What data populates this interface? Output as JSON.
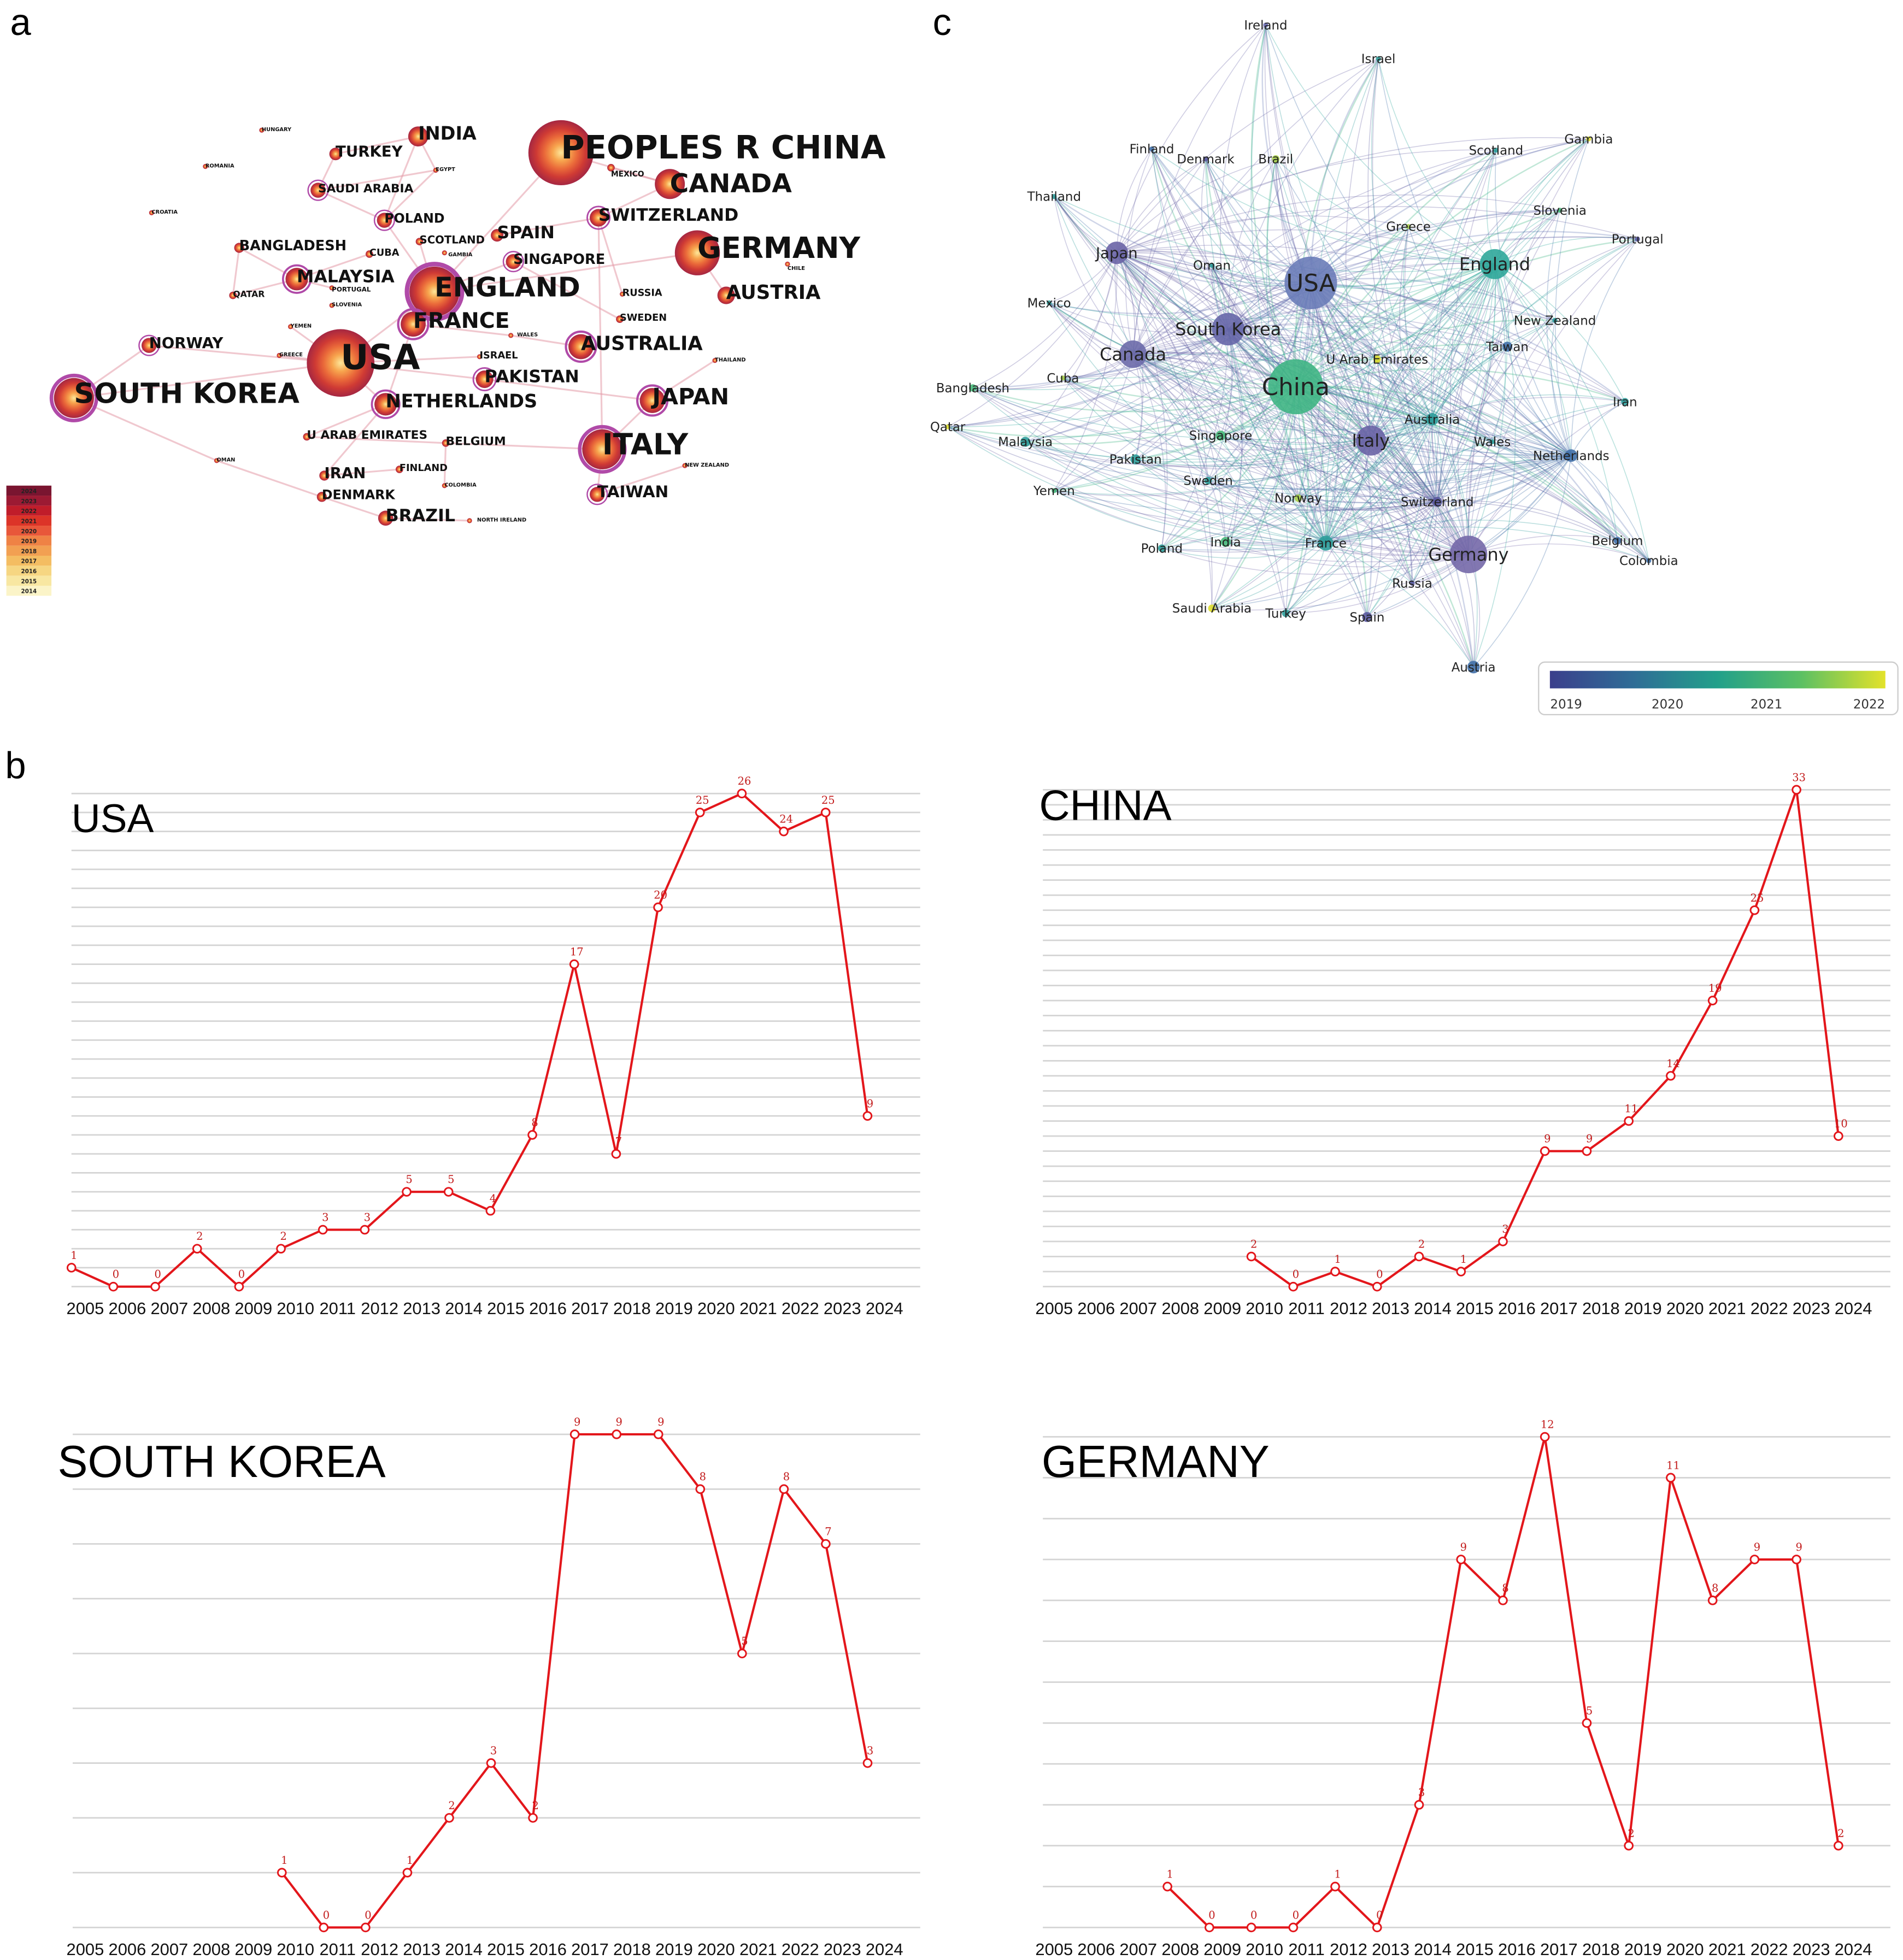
{
  "panel_labels": {
    "a": "a",
    "b": "b",
    "c": "c"
  },
  "panel_a": {
    "legend_years": [
      "2024",
      "2023",
      "2022",
      "2021",
      "2020",
      "2019",
      "2018",
      "2017",
      "2016",
      "2015",
      "2014"
    ],
    "legend_colors": [
      "#7a1530",
      "#9c1a33",
      "#c01d2a",
      "#dc3428",
      "#e8573a",
      "#ef8245",
      "#f2a052",
      "#f4bd62",
      "#f6d682",
      "#f8e7a2",
      "#fbf4c8"
    ],
    "nodes": [
      {
        "label": "PEOPLES R CHINA"
      },
      {
        "label": "HUNGARY"
      },
      {
        "label": "INDIA"
      },
      {
        "label": "TURKEY"
      },
      {
        "label": "ROMANIA"
      },
      {
        "label": "EGYPT"
      },
      {
        "label": "SAUDI ARABIA"
      },
      {
        "label": "CROATIA"
      },
      {
        "label": "POLAND"
      },
      {
        "label": "BANGLADESH"
      },
      {
        "label": "SCOTLAND"
      },
      {
        "label": "CUBA"
      },
      {
        "label": "GAMBIA"
      },
      {
        "label": "SPAIN"
      },
      {
        "label": "SWITZERLAND"
      },
      {
        "label": "SINGAPORE"
      },
      {
        "label": "MALAYSIA"
      },
      {
        "label": "ENGLAND"
      },
      {
        "label": "GERMANY"
      },
      {
        "label": "CHILE"
      },
      {
        "label": "CANADA"
      },
      {
        "label": "MEXICO"
      },
      {
        "label": "QATAR"
      },
      {
        "label": "PORTUGAL"
      },
      {
        "label": "SLOVENIA"
      },
      {
        "label": "RUSSIA"
      },
      {
        "label": "AUSTRIA"
      },
      {
        "label": "FRANCE"
      },
      {
        "label": "YEMEN"
      },
      {
        "label": "WALES"
      },
      {
        "label": "SWEDEN"
      },
      {
        "label": "AUSTRALIA"
      },
      {
        "label": "NORWAY"
      },
      {
        "label": "GREECE"
      },
      {
        "label": "USA"
      },
      {
        "label": "ISRAEL"
      },
      {
        "label": "PAKISTAN"
      },
      {
        "label": "THAILAND"
      },
      {
        "label": "SOUTH KOREA"
      },
      {
        "label": "NETHERLANDS"
      },
      {
        "label": "JAPAN"
      },
      {
        "label": "ITALY"
      },
      {
        "label": "U ARAB EMIRATES"
      },
      {
        "label": "BELGIUM"
      },
      {
        "label": "OMAN"
      },
      {
        "label": "IRAN"
      },
      {
        "label": "FINLAND"
      },
      {
        "label": "COLOMBIA"
      },
      {
        "label": "NEW ZEALAND"
      },
      {
        "label": "DENMARK"
      },
      {
        "label": "TAIWAN"
      },
      {
        "label": "BRAZIL"
      },
      {
        "label": "NORTH IRELAND"
      }
    ]
  },
  "panel_c": {
    "colorbar_ticks": [
      "2019",
      "2020",
      "2021",
      "2022"
    ],
    "colormap": [
      "#3b3f8c",
      "#2f6d96",
      "#22a08a",
      "#5cc063",
      "#e3e22a"
    ],
    "nodes": [
      {
        "label": "Ireland",
        "color": "#6a6ab0"
      },
      {
        "label": "Israel",
        "color": "#2e9d9a"
      },
      {
        "label": "Finland",
        "color": "#4170a8"
      },
      {
        "label": "Denmark",
        "color": "#5b5aa0"
      },
      {
        "label": "Brazil",
        "color": "#a8d04a"
      },
      {
        "label": "Scotland",
        "color": "#2e9d9a"
      },
      {
        "label": "Gambia",
        "color": "#dede30"
      },
      {
        "label": "Thailand",
        "color": "#2e9d9a"
      },
      {
        "label": "Slovenia",
        "color": "#48b87a"
      },
      {
        "label": "Greece",
        "color": "#a8d04a"
      },
      {
        "label": "Portugal",
        "color": "#5b5aa0"
      },
      {
        "label": "Japan",
        "color": "#6a64a6"
      },
      {
        "label": "Oman",
        "color": "#2e9d9a"
      },
      {
        "label": "USA",
        "color": "#6a7cb8"
      },
      {
        "label": "England",
        "color": "#2fa79a"
      },
      {
        "label": "Mexico",
        "color": "#2e9d9a"
      },
      {
        "label": "New Zealand",
        "color": "#2e9d9a"
      },
      {
        "label": "South Korea",
        "color": "#6666a8"
      },
      {
        "label": "Canada",
        "color": "#6c6aaa"
      },
      {
        "label": "Taiwan",
        "color": "#4170a8"
      },
      {
        "label": "U Arab Emirates",
        "color": "#dede30"
      },
      {
        "label": "Cuba",
        "color": "#a8d04a"
      },
      {
        "label": "Bangladesh",
        "color": "#48b87a"
      },
      {
        "label": "China",
        "color": "#3fb584"
      },
      {
        "label": "Iran",
        "color": "#2e9d9a"
      },
      {
        "label": "Qatar",
        "color": "#dede30"
      },
      {
        "label": "Australia",
        "color": "#2e9d9a"
      },
      {
        "label": "Singapore",
        "color": "#48b87a"
      },
      {
        "label": "Italy",
        "color": "#6a64a6"
      },
      {
        "label": "Malaysia",
        "color": "#2e9d9a"
      },
      {
        "label": "Wales",
        "color": "#2e9d9a"
      },
      {
        "label": "Netherlands",
        "color": "#4170a8"
      },
      {
        "label": "Pakistan",
        "color": "#2e9d9a"
      },
      {
        "label": "Yemen",
        "color": "#48b87a"
      },
      {
        "label": "Sweden",
        "color": "#2e9d9a"
      },
      {
        "label": "Norway",
        "color": "#a8d04a"
      },
      {
        "label": "Switzerland",
        "color": "#5b5aa0"
      },
      {
        "label": "Poland",
        "color": "#2e9d9a"
      },
      {
        "label": "India",
        "color": "#48b87a"
      },
      {
        "label": "France",
        "color": "#2e9d9a"
      },
      {
        "label": "Germany",
        "color": "#7468a8"
      },
      {
        "label": "Belgium",
        "color": "#4170a8"
      },
      {
        "label": "Colombia",
        "color": "#4170a8"
      },
      {
        "label": "Russia",
        "color": "#5b5aa0"
      },
      {
        "label": "Saudi Arabia",
        "color": "#dede30"
      },
      {
        "label": "Turkey",
        "color": "#2e9d9a"
      },
      {
        "label": "Spain",
        "color": "#5b5aa0"
      },
      {
        "label": "Austria",
        "color": "#4170a8"
      }
    ]
  },
  "chart_data": [
    {
      "type": "line",
      "title": "USA",
      "color": "#e3161b",
      "categories": [
        "2005",
        "2006",
        "2007",
        "2008",
        "2009",
        "2010",
        "2011",
        "2012",
        "2013",
        "2014",
        "2015",
        "2016",
        "2017",
        "2018",
        "2019",
        "2020",
        "2021",
        "2022",
        "2023",
        "2024"
      ],
      "values": [
        1,
        0,
        0,
        2,
        0,
        2,
        3,
        3,
        5,
        5,
        4,
        8,
        17,
        7,
        20,
        25,
        26,
        24,
        25,
        9
      ],
      "ylim": [
        0,
        26
      ],
      "grid": true
    },
    {
      "type": "line",
      "title": "CHINA",
      "color": "#e3161b",
      "categories": [
        "2005",
        "2006",
        "2007",
        "2008",
        "2009",
        "2010",
        "2011",
        "2012",
        "2013",
        "2014",
        "2015",
        "2016",
        "2017",
        "2018",
        "2019",
        "2020",
        "2021",
        "2022",
        "2023",
        "2024"
      ],
      "values": [
        null,
        null,
        null,
        null,
        null,
        2,
        0,
        1,
        0,
        2,
        1,
        3,
        9,
        9,
        11,
        14,
        19,
        25,
        33,
        10
      ],
      "ylim": [
        0,
        33
      ],
      "grid": true
    },
    {
      "type": "line",
      "title": "SOUTH KOREA",
      "color": "#e3161b",
      "categories": [
        "2005",
        "2006",
        "2007",
        "2008",
        "2009",
        "2010",
        "2011",
        "2012",
        "2013",
        "2014",
        "2015",
        "2016",
        "2017",
        "2018",
        "2019",
        "2020",
        "2021",
        "2022",
        "2023",
        "2024"
      ],
      "values": [
        null,
        null,
        null,
        null,
        null,
        1,
        0,
        0,
        1,
        2,
        3,
        2,
        9,
        9,
        9,
        8,
        5,
        8,
        7,
        3
      ],
      "ylim": [
        0,
        9
      ],
      "grid": true
    },
    {
      "type": "line",
      "title": "GERMANY",
      "color": "#e3161b",
      "categories": [
        "2005",
        "2006",
        "2007",
        "2008",
        "2009",
        "2010",
        "2011",
        "2012",
        "2013",
        "2014",
        "2015",
        "2016",
        "2017",
        "2018",
        "2019",
        "2020",
        "2021",
        "2022",
        "2023",
        "2024"
      ],
      "values": [
        null,
        null,
        null,
        1,
        0,
        0,
        0,
        1,
        0,
        3,
        9,
        8,
        12,
        5,
        2,
        11,
        8,
        9,
        9,
        2
      ],
      "ylim": [
        0,
        12
      ],
      "grid": true
    }
  ]
}
